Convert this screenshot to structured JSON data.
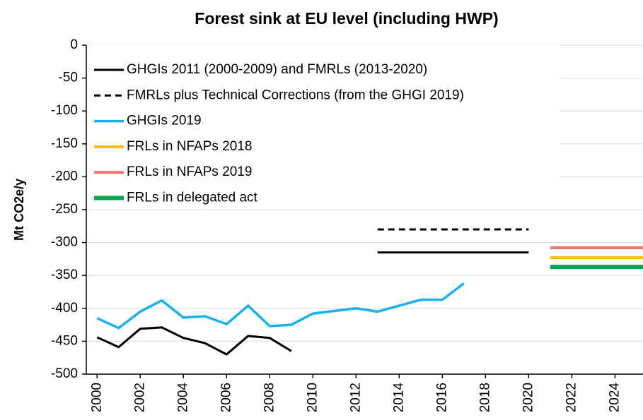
{
  "chart_data": {
    "type": "line",
    "title": "Forest sink at EU level (including HWP)",
    "ylabel": "Mt CO2e/y",
    "xlim": [
      1999.5,
      2025.3
    ],
    "xticks": [
      2000,
      2002,
      2004,
      2006,
      2008,
      2010,
      2012,
      2014,
      2016,
      2018,
      2020,
      2022,
      2024
    ],
    "ylim": [
      -500,
      0
    ],
    "yticks": [
      0,
      -50,
      -100,
      -150,
      -200,
      -250,
      -300,
      -350,
      -400,
      -450,
      -500
    ],
    "grid": true,
    "legend": "upper left",
    "series": [
      {
        "name": "GHGIs 2011 (2000-2009) and FMRLs (2013-2020)",
        "color": "#000000",
        "dash": "solid",
        "width": 3,
        "x": [
          2000,
          2001,
          2002,
          2003,
          2004,
          2005,
          2006,
          2007,
          2008,
          2009,
          null,
          2013,
          2020
        ],
        "values": [
          -444,
          -459,
          -431,
          -429,
          -445,
          -453,
          -470,
          -442,
          -445,
          -465,
          null,
          -315,
          -315
        ]
      },
      {
        "name": "FMRLs plus Technical Corrections (from the GHGI 2019)",
        "color": "#000000",
        "dash": "dashed",
        "width": 3,
        "x": [
          2013,
          2020
        ],
        "values": [
          -280,
          -280
        ]
      },
      {
        "name": "GHGIs 2019",
        "color": "#1ab0ea",
        "dash": "solid",
        "width": 3.5,
        "x": [
          2000,
          2001,
          2002,
          2003,
          2004,
          2005,
          2006,
          2007,
          2008,
          2009,
          2010,
          2011,
          2012,
          2013,
          2014,
          2015,
          2016,
          2017
        ],
        "values": [
          -415,
          -430,
          -405,
          -388,
          -414,
          -412,
          -424,
          -396,
          -427,
          -425,
          -408,
          -404,
          -400,
          -405,
          -396,
          -387,
          -387,
          -362
        ]
      },
      {
        "name": "FRLs in NFAPs 2018",
        "color": "#ffc000",
        "dash": "solid",
        "width": 4,
        "x": [
          2021,
          2025.3
        ],
        "values": [
          -323,
          -323
        ]
      },
      {
        "name": "FRLs in NFAPs 2019",
        "color": "#f4736b",
        "dash": "solid",
        "width": 4,
        "x": [
          2021,
          2025.3
        ],
        "values": [
          -308,
          -308
        ]
      },
      {
        "name": "FRLs in delegated act",
        "color": "#00a651",
        "dash": "solid",
        "width": 6,
        "x": [
          2021,
          2025.3
        ],
        "values": [
          -337,
          -337
        ]
      }
    ]
  }
}
